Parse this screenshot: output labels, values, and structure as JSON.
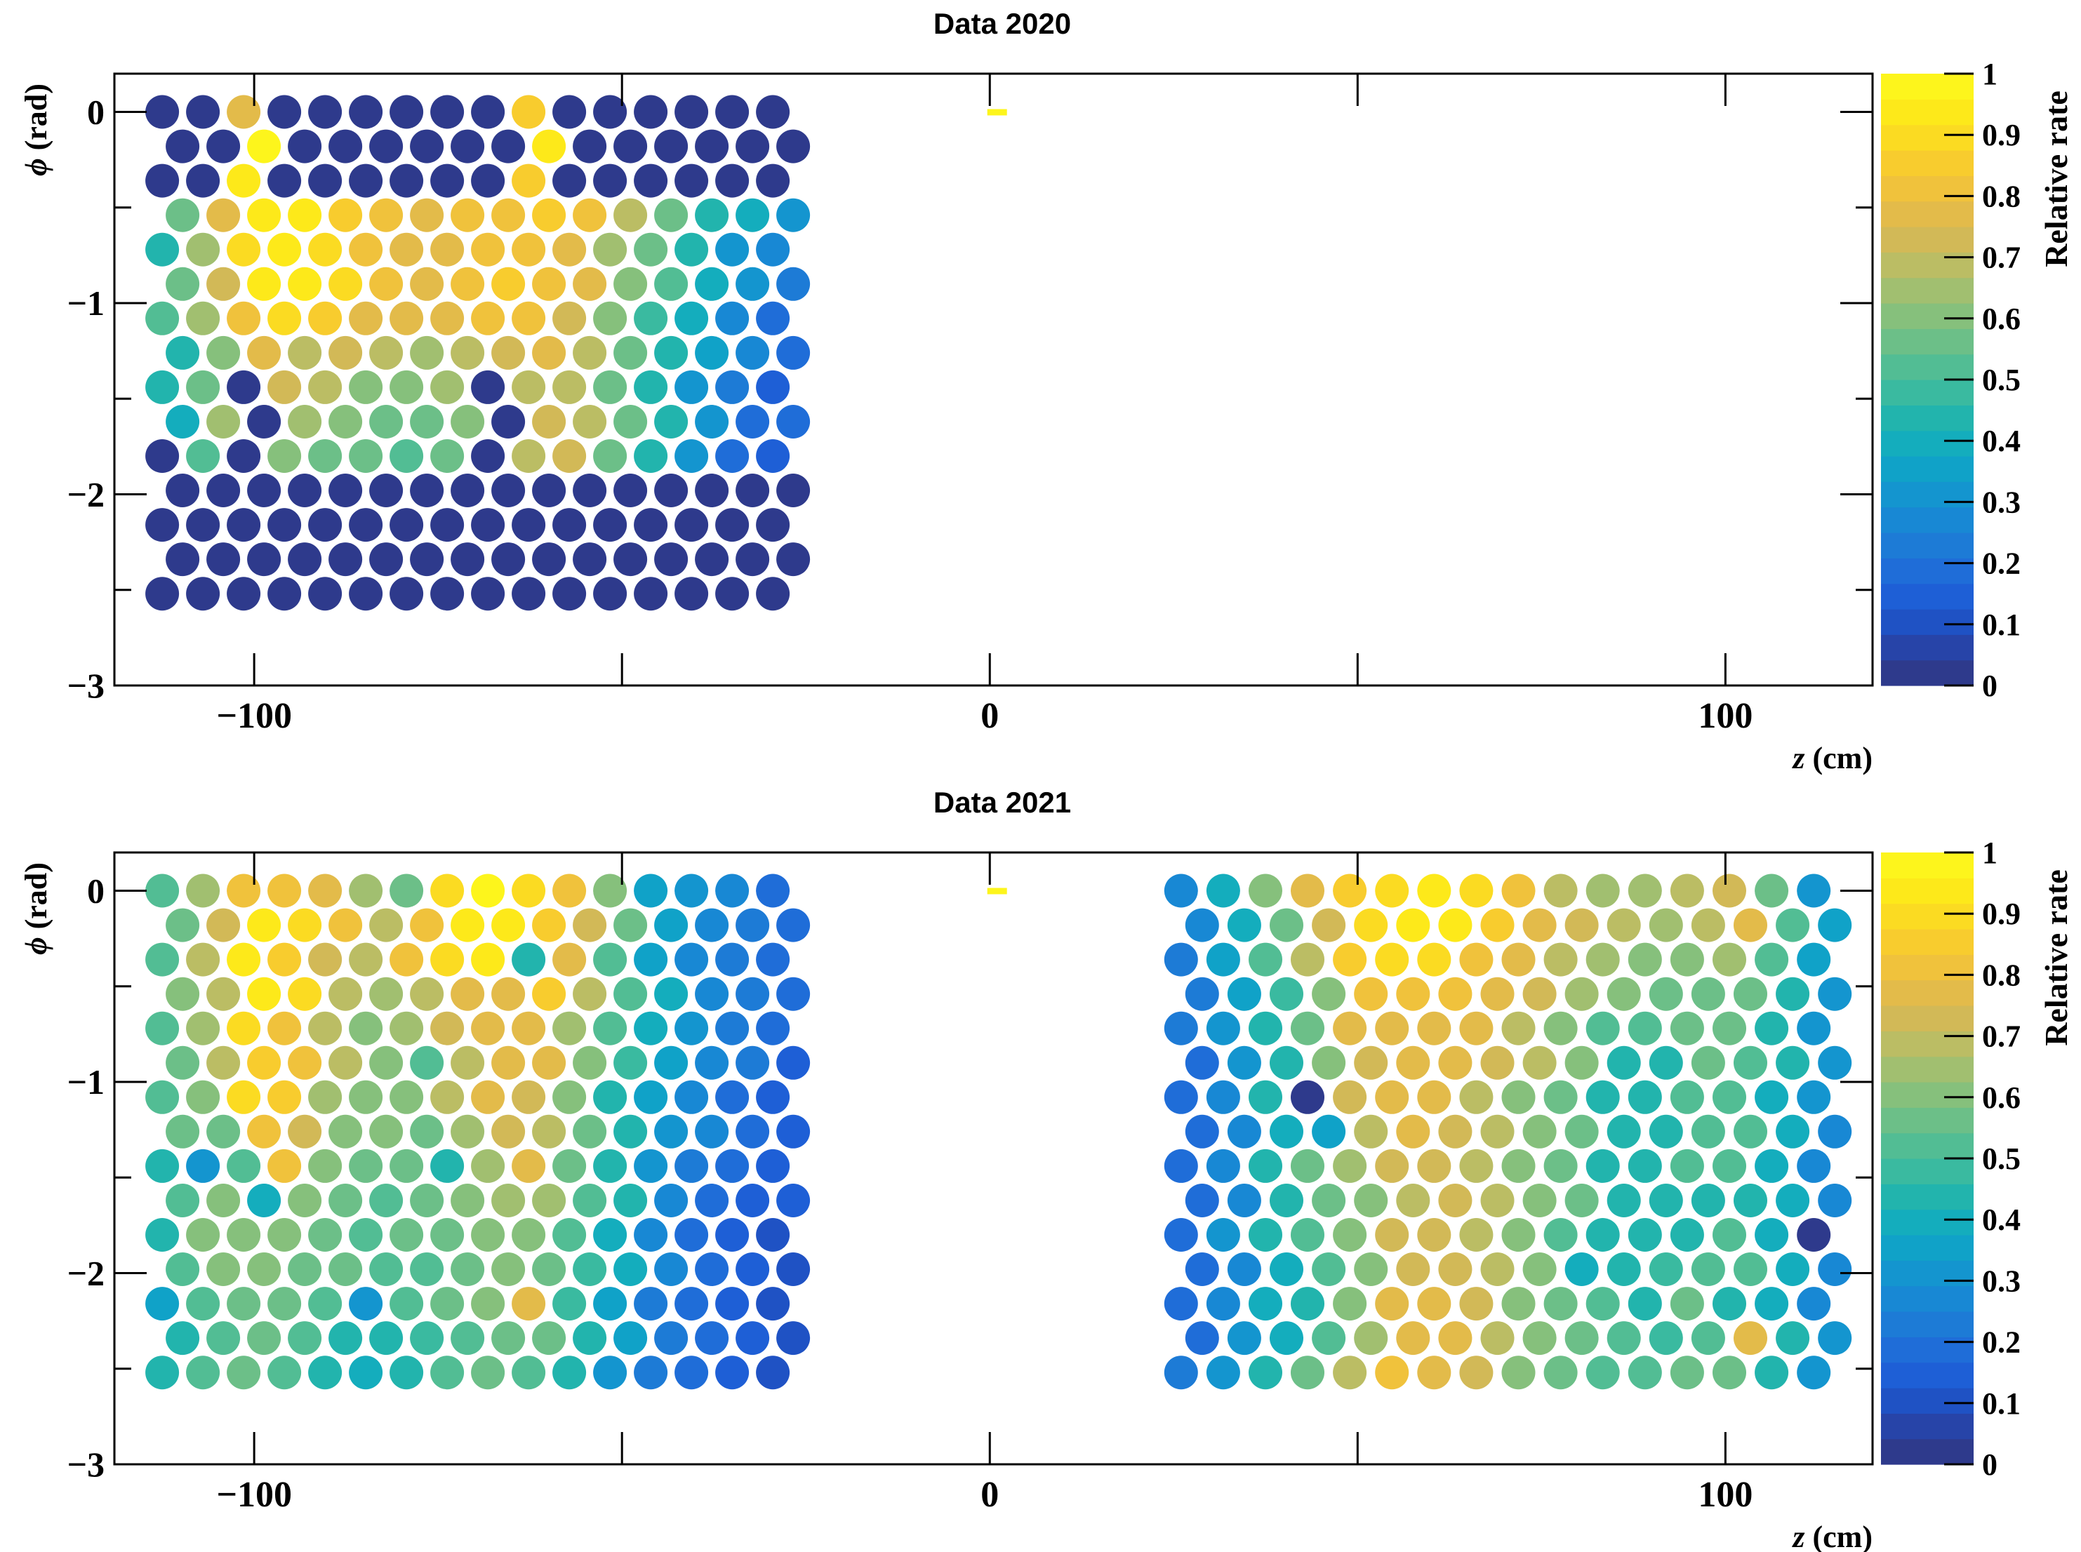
{
  "chart_data": [
    {
      "type": "heatmap",
      "title": "Data 2020",
      "xlabel_var": "z",
      "xlabel_unit": "(cm)",
      "ylabel_var": "ϕ",
      "ylabel_unit": "(rad)",
      "xlim": [
        -119,
        120
      ],
      "ylim": [
        -3,
        0.2
      ],
      "x_ticks": [
        -100,
        0,
        100
      ],
      "x_tick_labels": [
        "−100",
        "0",
        "100"
      ],
      "y_ticks": [
        0,
        -1,
        -2,
        -3
      ],
      "y_tick_labels": [
        "0",
        "−1",
        "−2",
        "−3"
      ],
      "colorbar": {
        "label": "Relative rate",
        "range": [
          0,
          1
        ],
        "ticks": [
          0,
          0.1,
          0.2,
          0.3,
          0.4,
          0.5,
          0.6,
          0.7,
          0.8,
          0.9,
          1
        ],
        "tick_labels": [
          "0",
          "0.1",
          "0.2",
          "0.3",
          "0.4",
          "0.5",
          "0.6",
          "0.7",
          "0.8",
          "0.9",
          "1"
        ],
        "colors": [
          "#2e3a8c",
          "#2744a8",
          "#1f52c4",
          "#1e5fd6",
          "#1f6dd8",
          "#1d7bd6",
          "#1888d4",
          "#1495cf",
          "#10a2c8",
          "#14adbd",
          "#22b4ad",
          "#3abaa0",
          "#52bd94",
          "#6cbf88",
          "#86c07c",
          "#a1bf70",
          "#bbbd64",
          "#d2b957",
          "#e3bb4a",
          "#f0c23c",
          "#f8cc2e",
          "#fbdb22",
          "#fde91a",
          "#fdf51c"
        ]
      },
      "marker": {
        "z": 1,
        "phi": 0,
        "value": 1.0
      },
      "modules": [
        {
          "x0": -112.5,
          "x1": -29.5,
          "rows": 15,
          "values": [
            [
              0.0,
              0.0,
              0.78,
              0.0,
              0.0,
              0.0,
              0.0,
              0.0,
              0.0,
              0.85,
              0.0,
              0.0,
              0.0,
              0.0,
              0.0,
              0.0
            ],
            [
              0.0,
              0.0,
              1.0,
              0.0,
              0.0,
              0.0,
              0.0,
              0.0,
              0.0,
              0.92,
              0.0,
              0.0,
              0.0,
              0.0,
              0.0,
              0.0
            ],
            [
              0.0,
              0.0,
              0.95,
              0.0,
              0.0,
              0.0,
              0.0,
              0.0,
              0.0,
              0.85,
              0.0,
              0.0,
              0.0,
              0.0,
              0.0,
              0.0
            ],
            [
              0.55,
              0.75,
              0.95,
              0.92,
              0.85,
              0.8,
              0.76,
              0.8,
              0.8,
              0.85,
              0.82,
              0.7,
              0.58,
              0.45,
              0.38,
              0.3
            ],
            [
              0.45,
              0.65,
              0.9,
              0.95,
              0.9,
              0.8,
              0.75,
              0.78,
              0.8,
              0.82,
              0.75,
              0.65,
              0.55,
              0.42,
              0.3,
              0.25
            ],
            [
              0.55,
              0.72,
              0.92,
              0.95,
              0.88,
              0.82,
              0.78,
              0.8,
              0.85,
              0.82,
              0.75,
              0.62,
              0.5,
              0.4,
              0.3,
              0.22
            ],
            [
              0.5,
              0.65,
              0.82,
              0.88,
              0.85,
              0.78,
              0.75,
              0.78,
              0.82,
              0.8,
              0.72,
              0.6,
              0.48,
              0.38,
              0.28,
              0.2
            ],
            [
              0.45,
              0.6,
              0.75,
              0.7,
              0.72,
              0.7,
              0.65,
              0.68,
              0.72,
              0.75,
              0.7,
              0.58,
              0.45,
              0.35,
              0.25,
              0.18
            ],
            [
              0.45,
              0.55,
              0.0,
              0.72,
              0.7,
              0.62,
              0.6,
              0.65,
              0.0,
              0.7,
              0.68,
              0.55,
              0.45,
              0.32,
              0.22,
              0.15
            ],
            [
              0.4,
              0.65,
              0.0,
              0.65,
              0.62,
              0.58,
              0.55,
              0.6,
              0.0,
              0.72,
              0.7,
              0.58,
              0.42,
              0.3,
              0.2,
              0.18
            ],
            [
              0.0,
              0.52,
              0.0,
              0.6,
              0.58,
              0.55,
              0.52,
              0.58,
              0.0,
              0.68,
              0.72,
              0.55,
              0.42,
              0.3,
              0.18,
              0.15
            ],
            [
              0.0,
              0.0,
              0.0,
              0.0,
              0.0,
              0.0,
              0.0,
              0.0,
              0.0,
              0.0,
              0.0,
              0.0,
              0.0,
              0.0,
              0.0,
              0.0
            ],
            [
              0.0,
              0.0,
              0.0,
              0.0,
              0.0,
              0.0,
              0.0,
              0.0,
              0.0,
              0.0,
              0.0,
              0.0,
              0.0,
              0.0,
              0.0,
              0.0
            ],
            [
              0.0,
              0.0,
              0.0,
              0.0,
              0.0,
              0.0,
              0.0,
              0.0,
              0.0,
              0.0,
              0.0,
              0.0,
              0.0,
              0.0,
              0.0,
              0.0
            ],
            [
              0.0,
              0.0,
              0.0,
              0.0,
              0.0,
              0.0,
              0.0,
              0.0,
              0.0,
              0.0,
              0.0,
              0.0,
              0.0,
              0.0,
              0.0,
              0.0
            ]
          ]
        }
      ]
    },
    {
      "type": "heatmap",
      "title": "Data 2021",
      "xlabel_var": "z",
      "xlabel_unit": "(cm)",
      "ylabel_var": "ϕ",
      "ylabel_unit": "(rad)",
      "xlim": [
        -119,
        120
      ],
      "ylim": [
        -3,
        0.2
      ],
      "x_ticks": [
        -100,
        0,
        100
      ],
      "x_tick_labels": [
        "−100",
        "0",
        "100"
      ],
      "y_ticks": [
        0,
        -1,
        -2,
        -3
      ],
      "y_tick_labels": [
        "0",
        "−1",
        "−2",
        "−3"
      ],
      "colorbar": {
        "label": "Relative rate",
        "range": [
          0,
          1
        ],
        "ticks": [
          0,
          0.1,
          0.2,
          0.3,
          0.4,
          0.5,
          0.6,
          0.7,
          0.8,
          0.9,
          1
        ],
        "tick_labels": [
          "0",
          "0.1",
          "0.2",
          "0.3",
          "0.4",
          "0.5",
          "0.6",
          "0.7",
          "0.8",
          "0.9",
          "1"
        ],
        "colors": [
          "#2e3a8c",
          "#2744a8",
          "#1f52c4",
          "#1e5fd6",
          "#1f6dd8",
          "#1d7bd6",
          "#1888d4",
          "#1495cf",
          "#10a2c8",
          "#14adbd",
          "#22b4ad",
          "#3abaa0",
          "#52bd94",
          "#6cbf88",
          "#86c07c",
          "#a1bf70",
          "#bbbd64",
          "#d2b957",
          "#e3bb4a",
          "#f0c23c",
          "#f8cc2e",
          "#fbdb22",
          "#fde91a",
          "#fdf51c"
        ]
      },
      "marker": {
        "z": 1,
        "phi": 0,
        "value": 1.0
      },
      "modules": [
        {
          "x0": -112.5,
          "x1": -29.5,
          "rows": 15,
          "values": [
            [
              0.5,
              0.65,
              0.8,
              0.82,
              0.75,
              0.65,
              0.55,
              0.9,
              0.98,
              0.9,
              0.8,
              0.6,
              0.35,
              0.3,
              0.25,
              0.2
            ],
            [
              0.55,
              0.72,
              0.95,
              0.9,
              0.8,
              0.68,
              0.82,
              0.92,
              0.95,
              0.85,
              0.72,
              0.55,
              0.35,
              0.28,
              0.22,
              0.18
            ],
            [
              0.52,
              0.68,
              0.92,
              0.85,
              0.72,
              0.7,
              0.8,
              0.88,
              0.92,
              0.45,
              0.75,
              0.5,
              0.35,
              0.28,
              0.22,
              0.18
            ],
            [
              0.6,
              0.7,
              0.92,
              0.88,
              0.7,
              0.65,
              0.68,
              0.75,
              0.78,
              0.85,
              0.68,
              0.5,
              0.38,
              0.28,
              0.22,
              0.18
            ],
            [
              0.5,
              0.65,
              0.9,
              0.82,
              0.7,
              0.62,
              0.65,
              0.72,
              0.76,
              0.78,
              0.65,
              0.5,
              0.38,
              0.3,
              0.22,
              0.18
            ],
            [
              0.55,
              0.7,
              0.85,
              0.82,
              0.68,
              0.6,
              0.5,
              0.7,
              0.76,
              0.75,
              0.62,
              0.48,
              0.35,
              0.28,
              0.22,
              0.15
            ],
            [
              0.5,
              0.6,
              0.88,
              0.85,
              0.65,
              0.6,
              0.62,
              0.68,
              0.75,
              0.72,
              0.6,
              0.45,
              0.35,
              0.25,
              0.18,
              0.15
            ],
            [
              0.55,
              0.58,
              0.8,
              0.72,
              0.62,
              0.6,
              0.58,
              0.65,
              0.72,
              0.7,
              0.58,
              0.45,
              0.32,
              0.25,
              0.18,
              0.15
            ],
            [
              0.45,
              0.3,
              0.52,
              0.82,
              0.6,
              0.55,
              0.55,
              0.45,
              0.65,
              0.78,
              0.55,
              0.42,
              0.3,
              0.22,
              0.18,
              0.15
            ],
            [
              0.52,
              0.62,
              0.38,
              0.6,
              0.58,
              0.52,
              0.55,
              0.6,
              0.65,
              0.65,
              0.52,
              0.42,
              0.25,
              0.2,
              0.16,
              0.15
            ],
            [
              0.45,
              0.6,
              0.62,
              0.6,
              0.55,
              0.5,
              0.55,
              0.58,
              0.6,
              0.62,
              0.5,
              0.38,
              0.25,
              0.2,
              0.15,
              0.12
            ],
            [
              0.5,
              0.6,
              0.62,
              0.58,
              0.55,
              0.5,
              0.5,
              0.58,
              0.62,
              0.58,
              0.48,
              0.38,
              0.25,
              0.18,
              0.15,
              0.12
            ],
            [
              0.35,
              0.5,
              0.55,
              0.55,
              0.5,
              0.3,
              0.5,
              0.55,
              0.6,
              0.75,
              0.48,
              0.35,
              0.22,
              0.18,
              0.15,
              0.12
            ],
            [
              0.45,
              0.52,
              0.55,
              0.5,
              0.45,
              0.45,
              0.48,
              0.52,
              0.58,
              0.55,
              0.45,
              0.35,
              0.22,
              0.18,
              0.15,
              0.12
            ],
            [
              0.45,
              0.52,
              0.55,
              0.5,
              0.45,
              0.4,
              0.45,
              0.5,
              0.55,
              0.52,
              0.42,
              0.32,
              0.22,
              0.18,
              0.15,
              0.12
            ]
          ]
        },
        {
          "x0": 26,
          "x1": 112,
          "rows": 15,
          "values": [
            [
              0.25,
              0.4,
              0.6,
              0.75,
              0.85,
              0.9,
              0.95,
              0.9,
              0.8,
              0.7,
              0.65,
              0.65,
              0.7,
              0.72,
              0.55,
              0.3
            ],
            [
              0.25,
              0.38,
              0.55,
              0.72,
              0.88,
              0.92,
              0.95,
              0.85,
              0.78,
              0.72,
              0.68,
              0.65,
              0.7,
              0.75,
              0.5,
              0.35
            ],
            [
              0.22,
              0.35,
              0.5,
              0.68,
              0.85,
              0.9,
              0.88,
              0.82,
              0.75,
              0.7,
              0.65,
              0.62,
              0.6,
              0.65,
              0.5,
              0.35
            ],
            [
              0.22,
              0.35,
              0.48,
              0.62,
              0.8,
              0.82,
              0.8,
              0.78,
              0.72,
              0.65,
              0.6,
              0.55,
              0.55,
              0.55,
              0.45,
              0.32
            ],
            [
              0.22,
              0.32,
              0.45,
              0.58,
              0.75,
              0.78,
              0.78,
              0.75,
              0.68,
              0.62,
              0.5,
              0.5,
              0.55,
              0.55,
              0.45,
              0.32
            ],
            [
              0.2,
              0.3,
              0.42,
              0.6,
              0.72,
              0.78,
              0.75,
              0.72,
              0.68,
              0.6,
              0.45,
              0.45,
              0.55,
              0.52,
              0.42,
              0.3
            ],
            [
              0.2,
              0.28,
              0.45,
              0.0,
              0.72,
              0.75,
              0.75,
              0.7,
              0.62,
              0.55,
              0.45,
              0.45,
              0.5,
              0.52,
              0.4,
              0.3
            ],
            [
              0.18,
              0.28,
              0.38,
              0.35,
              0.7,
              0.75,
              0.72,
              0.7,
              0.6,
              0.55,
              0.45,
              0.45,
              0.5,
              0.5,
              0.4,
              0.28
            ],
            [
              0.18,
              0.28,
              0.45,
              0.55,
              0.65,
              0.72,
              0.72,
              0.7,
              0.6,
              0.55,
              0.45,
              0.45,
              0.5,
              0.5,
              0.38,
              0.28
            ],
            [
              0.18,
              0.28,
              0.45,
              0.55,
              0.62,
              0.7,
              0.72,
              0.68,
              0.6,
              0.55,
              0.45,
              0.45,
              0.45,
              0.45,
              0.4,
              0.28
            ],
            [
              0.18,
              0.3,
              0.42,
              0.52,
              0.6,
              0.72,
              0.72,
              0.68,
              0.6,
              0.5,
              0.45,
              0.45,
              0.45,
              0.5,
              0.38,
              0.0
            ],
            [
              0.18,
              0.28,
              0.4,
              0.5,
              0.62,
              0.72,
              0.72,
              0.68,
              0.62,
              0.38,
              0.45,
              0.48,
              0.5,
              0.5,
              0.4,
              0.28
            ],
            [
              0.18,
              0.28,
              0.38,
              0.45,
              0.62,
              0.75,
              0.75,
              0.72,
              0.62,
              0.55,
              0.5,
              0.45,
              0.55,
              0.45,
              0.4,
              0.28
            ],
            [
              0.18,
              0.3,
              0.4,
              0.5,
              0.65,
              0.75,
              0.75,
              0.7,
              0.62,
              0.55,
              0.5,
              0.48,
              0.5,
              0.75,
              0.45,
              0.3
            ],
            [
              0.22,
              0.32,
              0.45,
              0.55,
              0.68,
              0.8,
              0.78,
              0.72,
              0.62,
              0.55,
              0.5,
              0.5,
              0.55,
              0.55,
              0.45,
              0.3
            ]
          ]
        }
      ]
    }
  ]
}
